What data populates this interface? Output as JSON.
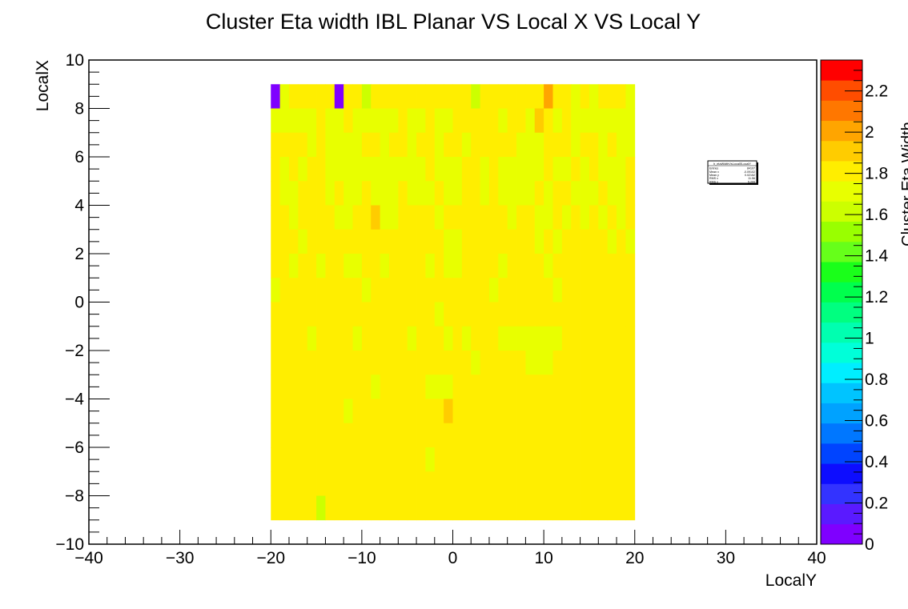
{
  "chart_data": {
    "type": "heatmap",
    "title": "Cluster Eta width IBL Planar VS Local X VS Local Y",
    "xlabel": "LocalY",
    "ylabel": "LocalX",
    "zlabel": "Cluster Eta Width",
    "xlim": [
      -40,
      40
    ],
    "ylim": [
      -10,
      10
    ],
    "zlim": [
      0,
      2.35
    ],
    "x_ticks": [
      "−40",
      "−30",
      "−20",
      "−10",
      "0",
      "10",
      "20",
      "30",
      "40"
    ],
    "y_ticks": [
      "−10",
      "−8",
      "−6",
      "−4",
      "−2",
      "0",
      "2",
      "4",
      "6",
      "8",
      "10"
    ],
    "z_ticks": [
      "0",
      "0.2",
      "0.4",
      "0.6",
      "0.8",
      "1",
      "1.2",
      "1.4",
      "1.6",
      "1.8",
      "2",
      "2.2"
    ],
    "x_bins": {
      "min": -20,
      "max": 20,
      "count": 40
    },
    "y_bins": {
      "min": -9,
      "max": 9,
      "count": 18
    },
    "palette": [
      "#7f00ff",
      "#5a1aff",
      "#3333ff",
      "#0d0dff",
      "#0044ff",
      "#0077ff",
      "#00a2ff",
      "#00c4ff",
      "#00eeff",
      "#00ffd9",
      "#00ffb0",
      "#00ff80",
      "#00ff4d",
      "#1aff1a",
      "#66ff1a",
      "#99ff00",
      "#ccff00",
      "#e8ff00",
      "#ffee00",
      "#ffcc00",
      "#ffa500",
      "#ff7700",
      "#ff4d00",
      "#ff0000"
    ],
    "z_rows_top_to_bottom": [
      "ARSSSSSASSQSSSSSSSSSSSQSSSSSSSUSSRSRSSSR",
      "RRRRRSRRSRRRRRSRRSRRSSSSSRSSRTSRSRRRRRRR",
      "SSSSRSRRRRSSRSSRSSRSSRSSSSSRRRSSSRSSRSRR",
      "SRSRSSRRRRRRRRRRRSRRRSSRSRRRRRSRRSRSRRRS",
      "SRRSSSRSRRSRRRSRRRSRRSSRSRRRRSRSSRRRSRRS",
      "SSRSSSSRRSSTRRSSSSRSSSSSSSRSSRRSRSRSRSRS",
      "SSSRSSSSSSSSSSSSSSSRRSSSSSSSSRSRSSSSSRSR",
      "SSRSSRSSRRSSRSSSSRSRRSSSSRSSSSRSSSSSSSSS",
      "RSSSSSSSSSRSSSSSSSSSSSSSRSSSSSSRSSSSSSSS",
      "SSSSSSSSSSSSSSSSSSRSSSSSSSSSSSSSSSSSSSSS",
      "SSSSRSSSSRSSSSSRSSSRSRSSSRRRRRRRSSSSSSSS",
      "SSSSSSSSSSSSSSSSSSSSSSRSSSSSRRRSSSSSSSSS",
      "SSSSSSSSSSSRSSSSSRRRSSSSSSSSSSSSSSSSSSSS",
      "SSSSSSSSRSSSSSSSSSSTSSSSSSSSSSSSSSSSSSSS",
      "SSSSSSSSSSSSSSSSSSSSSSSSSSSSSSSSSSSSSSSS",
      "SSSSSSSSSSSSSSSSSRSSSSSSSSSSSSSSSSSSSSSS",
      "SSSSSSSSSSSSSSSSSSSSSSSSSSSSSSSSSSSSSSSS",
      "SSSSSQSSSSSSSSSSSSSSSSSSSSSSSSSSSSSSSSSS"
    ],
    "z_step": 0.1,
    "stats": {
      "title": "h_etaWidthVsLocalXLocalY",
      "rows": [
        {
          "label": "Entries",
          "value": "84107"
        },
        {
          "label": "Mean x",
          "value": "-0.09102"
        },
        {
          "label": "Mean y",
          "value": "0.02152"
        },
        {
          "label": "RMS x",
          "value": "11.56"
        },
        {
          "label": "RMS y",
          "value": "5.209"
        }
      ]
    }
  }
}
